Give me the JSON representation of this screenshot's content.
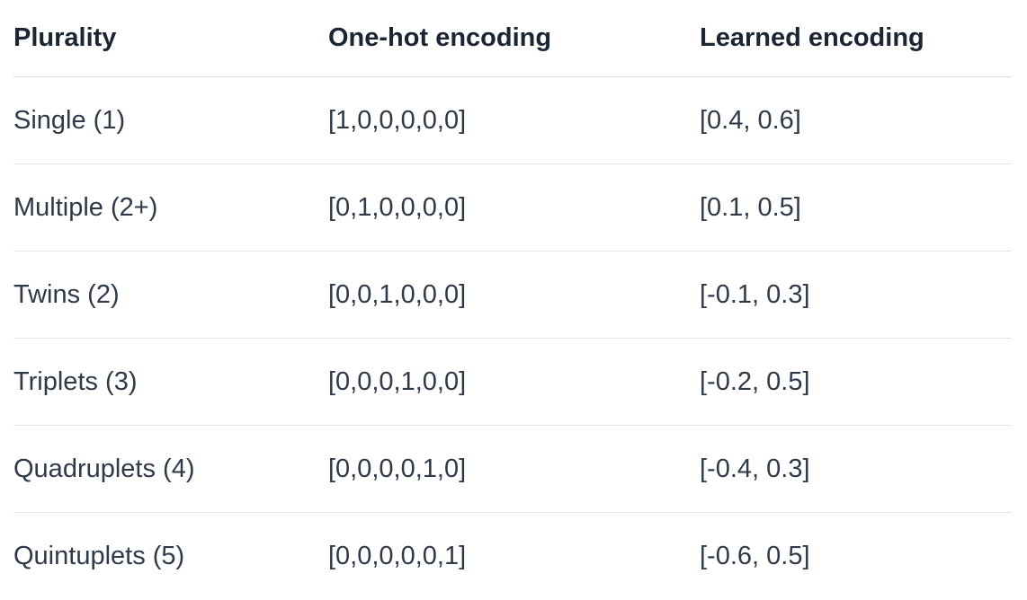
{
  "table": {
    "headers": [
      "Plurality",
      "One-hot encoding",
      "Learned encoding"
    ],
    "rows": [
      [
        "Single (1)",
        "[1,0,0,0,0,0]",
        "[0.4, 0.6]"
      ],
      [
        "Multiple (2+)",
        "[0,1,0,0,0,0]",
        "[0.1, 0.5]"
      ],
      [
        "Twins (2)",
        "[0,0,1,0,0,0]",
        "[-0.1, 0.3]"
      ],
      [
        "Triplets (3)",
        "[0,0,0,1,0,0]",
        "[-0.2, 0.5]"
      ],
      [
        "Quadruplets (4)",
        "[0,0,0,0,1,0]",
        "[-0.4, 0.3]"
      ],
      [
        "Quintuplets (5)",
        "[0,0,0,0,0,1]",
        "[-0.6, 0.5]"
      ]
    ]
  }
}
